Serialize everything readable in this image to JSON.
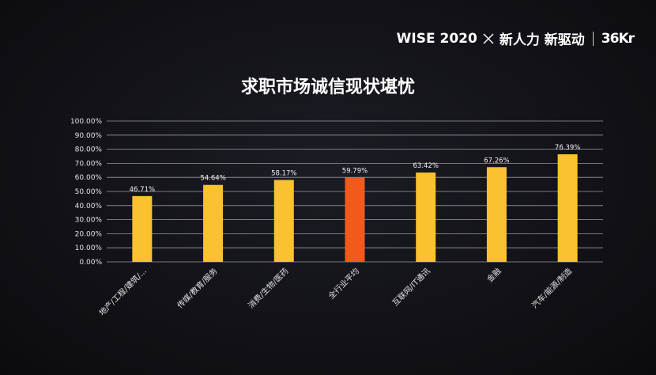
{
  "brand": {
    "event": "WISE 2020",
    "slogan": "新人力 新驱动",
    "logo_main": "36",
    "logo_suffix": "Kr"
  },
  "chart_data": {
    "type": "bar",
    "title": "求职市场诚信现状堪忧",
    "xlabel": "",
    "ylabel": "",
    "ylim": [
      0,
      100
    ],
    "yticks": [
      "0.00%",
      "10.00%",
      "20.00%",
      "30.00%",
      "40.00%",
      "50.00%",
      "60.00%",
      "70.00%",
      "80.00%",
      "90.00%",
      "100.00%"
    ],
    "categories": [
      "地产/工程/建筑/...",
      "传媒/教育/服务",
      "消费/生物/医药",
      "全行业平均",
      "互联网/IT通讯",
      "金融",
      "汽车/能源/制造"
    ],
    "values": [
      46.71,
      54.64,
      58.17,
      59.79,
      63.42,
      67.26,
      76.39
    ],
    "value_labels": [
      "46.71%",
      "54.64%",
      "58.17%",
      "59.79%",
      "63.42%",
      "67.26%",
      "76.39%"
    ],
    "highlight_index": 3,
    "grid": true,
    "legend": "none",
    "colors": {
      "bar": "#f9c22e",
      "highlight": "#f25a1c",
      "grid": "#9a9aa0"
    }
  }
}
